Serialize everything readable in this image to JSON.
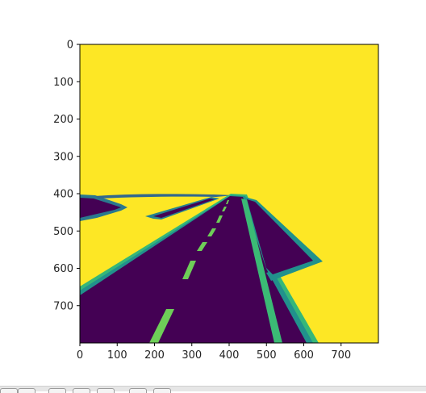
{
  "chart_data": {
    "type": "image",
    "title": "",
    "xlabel": "",
    "ylabel": "",
    "xlim": [
      0,
      800
    ],
    "ylim": [
      800,
      0
    ],
    "x_ticks": [
      0,
      100,
      200,
      300,
      400,
      500,
      600,
      700
    ],
    "y_ticks": [
      0,
      100,
      200,
      300,
      400,
      500,
      600,
      700
    ],
    "colormap": "viridis",
    "colors": {
      "background": "#fde725",
      "road": "#440154",
      "edge_teal": "#21918c",
      "edge_green": "#3bba75"
    }
  },
  "toolbar": {
    "buttons": [
      {
        "name": "home-icon"
      },
      {
        "name": "back-icon"
      },
      {
        "name": "forward-icon"
      },
      {
        "name": "pan-icon"
      },
      {
        "name": "zoom-icon"
      },
      {
        "name": "configure-icon"
      },
      {
        "name": "save-icon"
      }
    ]
  }
}
